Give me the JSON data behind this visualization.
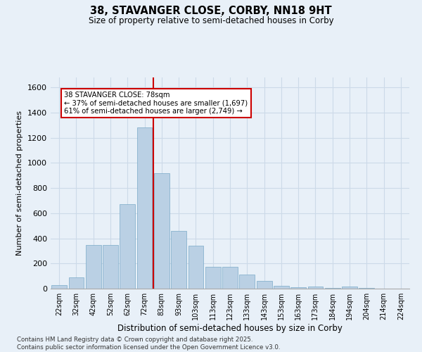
{
  "title": "38, STAVANGER CLOSE, CORBY, NN18 9HT",
  "subtitle": "Size of property relative to semi-detached houses in Corby",
  "xlabel": "Distribution of semi-detached houses by size in Corby",
  "ylabel": "Number of semi-detached properties",
  "footnote1": "Contains HM Land Registry data © Crown copyright and database right 2025.",
  "footnote2": "Contains public sector information licensed under the Open Government Licence v3.0.",
  "categories": [
    "22sqm",
    "32sqm",
    "42sqm",
    "52sqm",
    "62sqm",
    "72sqm",
    "83sqm",
    "93sqm",
    "103sqm",
    "113sqm",
    "123sqm",
    "133sqm",
    "143sqm",
    "153sqm",
    "163sqm",
    "173sqm",
    "184sqm",
    "194sqm",
    "204sqm",
    "214sqm",
    "224sqm"
  ],
  "values": [
    30,
    90,
    350,
    350,
    670,
    1280,
    920,
    460,
    340,
    175,
    175,
    110,
    60,
    20,
    10,
    15,
    5,
    15,
    5,
    0,
    0
  ],
  "bar_color": "#bad0e4",
  "bar_edge_color": "#7aaac8",
  "grid_color": "#ccdae8",
  "background_color": "#e8f0f8",
  "red_line_x": 5.5,
  "red_line_label": "38 STAVANGER CLOSE: 78sqm",
  "annotation_smaller": "← 37% of semi-detached houses are smaller (1,697)",
  "annotation_larger": "61% of semi-detached houses are larger (2,749) →",
  "annotation_box_color": "#ffffff",
  "annotation_box_edge": "#cc0000",
  "red_line_color": "#cc0000",
  "ylim": [
    0,
    1680
  ],
  "yticks": [
    0,
    200,
    400,
    600,
    800,
    1000,
    1200,
    1400,
    1600
  ]
}
